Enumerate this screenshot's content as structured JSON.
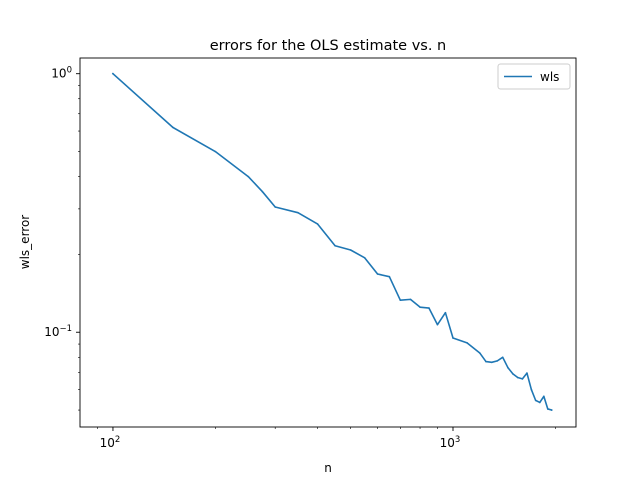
{
  "chart_data": {
    "type": "line",
    "title": "errors for the OLS estimate vs. n",
    "xlabel": "n",
    "ylabel": "wls_error",
    "xscale": "log",
    "yscale": "log",
    "xlim": [
      80,
      2300
    ],
    "ylim": [
      0.043,
      1.15
    ],
    "xticks": [
      {
        "value": 100,
        "base": "10",
        "exp": "2"
      },
      {
        "value": 1000,
        "base": "10",
        "exp": "3"
      }
    ],
    "yticks": [
      {
        "value": 0.1,
        "base": "10",
        "exp": "−1"
      },
      {
        "value": 1,
        "base": "10",
        "exp": "0"
      }
    ],
    "legend": {
      "position": "top-right",
      "entries": [
        "wls"
      ]
    },
    "grid": false,
    "series": [
      {
        "name": "wls",
        "color": "#1f77b4",
        "x": [
          100,
          150,
          200,
          250,
          275,
          300,
          350,
          400,
          450,
          500,
          550,
          600,
          650,
          700,
          750,
          800,
          850,
          900,
          950,
          1000,
          1100,
          1200,
          1250,
          1300,
          1350,
          1400,
          1450,
          1500,
          1550,
          1600,
          1650,
          1700,
          1750,
          1800,
          1850,
          1900,
          1950
        ],
        "y": [
          1.0,
          0.62,
          0.5,
          0.4,
          0.35,
          0.305,
          0.29,
          0.262,
          0.216,
          0.208,
          0.194,
          0.168,
          0.164,
          0.133,
          0.134,
          0.125,
          0.124,
          0.107,
          0.119,
          0.095,
          0.091,
          0.083,
          0.077,
          0.0765,
          0.0775,
          0.08,
          0.073,
          0.069,
          0.0668,
          0.066,
          0.0695,
          0.06,
          0.0545,
          0.0535,
          0.0565,
          0.0505,
          0.05
        ]
      }
    ]
  }
}
